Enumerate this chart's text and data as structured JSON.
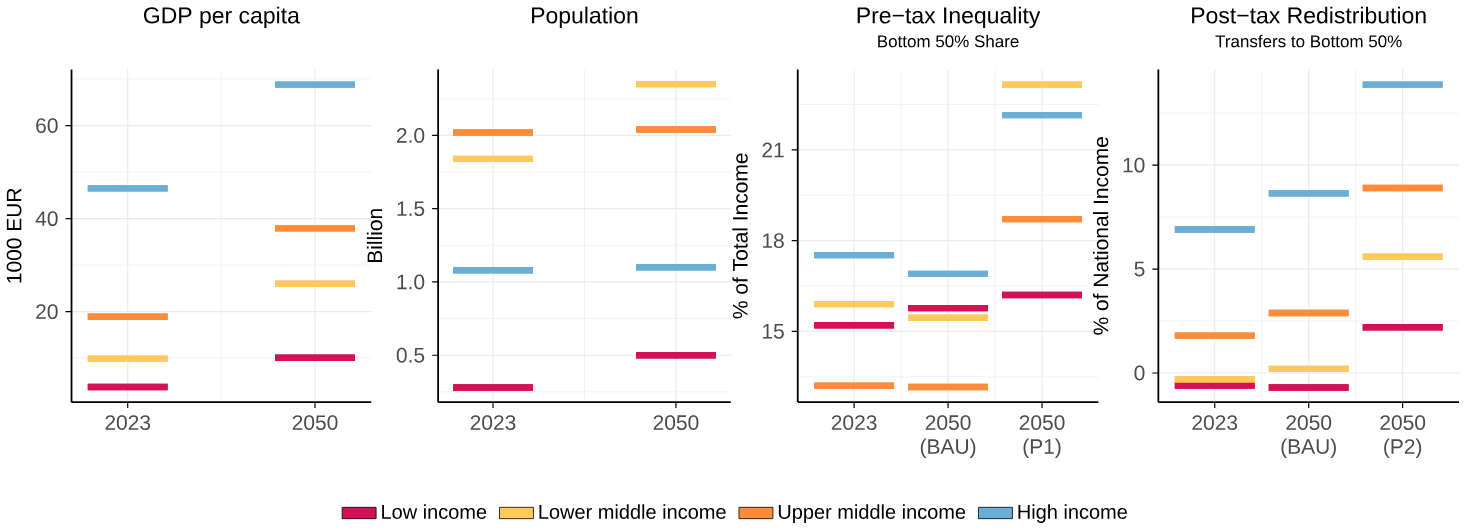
{
  "chart_data": [
    {
      "type": "box",
      "title": "GDP per capita",
      "ylabel": "1000 EUR",
      "categories": [
        "2023",
        "2050"
      ],
      "ylim": [
        0.55,
        72.05
      ],
      "yticks": [
        20,
        40,
        60
      ],
      "grid": true,
      "legend": "bottom",
      "series": [
        {
          "name": "Low income",
          "color": "#d31157",
          "boxes": [
            {
              "low": 3.8,
              "q1": 3.8,
              "median": 3.8,
              "q3": 3.8,
              "high": 3.8
            },
            {
              "low": 10.1,
              "q1": 10.1,
              "median": 10.1,
              "q3": 10.1,
              "high": 10.1
            }
          ]
        },
        {
          "name": "Lower middle income",
          "color": "#ffc95c",
          "boxes": [
            {
              "low": 9.9,
              "q1": 9.9,
              "median": 9.9,
              "q3": 9.9,
              "high": 9.9
            },
            {
              "low": 26.0,
              "q1": 26.0,
              "median": 26.0,
              "q3": 26.0,
              "high": 26.0
            }
          ]
        },
        {
          "name": "Upper middle income",
          "color": "#ff8c3b",
          "boxes": [
            {
              "low": 18.9,
              "q1": 18.9,
              "median": 18.9,
              "q3": 18.9,
              "high": 18.9
            },
            {
              "low": 37.9,
              "q1": 37.9,
              "median": 37.9,
              "q3": 37.9,
              "high": 37.9
            }
          ]
        },
        {
          "name": "High income",
          "color": "#6baed6",
          "boxes": [
            {
              "low": 46.5,
              "q1": 46.5,
              "median": 46.5,
              "q3": 46.5,
              "high": 46.5
            },
            {
              "low": 68.8,
              "q1": 68.8,
              "median": 68.8,
              "q3": 68.8,
              "high": 68.8
            }
          ]
        }
      ]
    },
    {
      "type": "box",
      "title": "Population",
      "ylabel": "Billion",
      "categories": [
        "2023",
        "2050"
      ],
      "ylim": [
        0.18,
        2.45
      ],
      "yticks": [
        0.5,
        {
          "value": 1,
          "label": "1.0"
        },
        1.5,
        {
          "value": 2,
          "label": "2.0"
        }
      ],
      "grid": true,
      "series": [
        {
          "color": "#d31157",
          "boxes": [
            {
              "low": 0.28,
              "q1": 0.28,
              "median": 0.28,
              "q3": 0.28,
              "high": 0.28
            },
            {
              "low": 0.5,
              "q1": 0.5,
              "median": 0.5,
              "q3": 0.5,
              "high": 0.5
            }
          ]
        },
        {
          "color": "#ffc95c",
          "boxes": [
            {
              "low": 1.84,
              "q1": 1.84,
              "median": 1.84,
              "q3": 1.84,
              "high": 1.84
            },
            {
              "low": 2.35,
              "q1": 2.35,
              "median": 2.35,
              "q3": 2.35,
              "high": 2.35
            }
          ]
        },
        {
          "color": "#ff8c3b",
          "boxes": [
            {
              "low": 2.02,
              "q1": 2.02,
              "median": 2.02,
              "q3": 2.02,
              "high": 2.02
            },
            {
              "low": 2.04,
              "q1": 2.04,
              "median": 2.04,
              "q3": 2.04,
              "high": 2.04
            }
          ]
        },
        {
          "color": "#6baed6",
          "boxes": [
            {
              "low": 1.08,
              "q1": 1.08,
              "median": 1.08,
              "q3": 1.08,
              "high": 1.08
            },
            {
              "low": 1.1,
              "q1": 1.1,
              "median": 1.1,
              "q3": 1.1,
              "high": 1.1
            }
          ]
        }
      ]
    },
    {
      "type": "box",
      "title": "Pre−tax Inequality",
      "subtitle": "Bottom 50% Share",
      "ylabel": "% of Total Income",
      "categories": [
        "2023",
        "2050 (BAU)",
        "2050 (P1)"
      ],
      "ylim": [
        12.66,
        23.66
      ],
      "yticks": [
        15,
        18,
        21
      ],
      "grid": true,
      "series": [
        {
          "color": "#d31157",
          "boxes": [
            {
              "low": 15.2,
              "q1": 15.2,
              "median": 15.2,
              "q3": 15.2,
              "high": 15.2
            },
            {
              "low": 15.77,
              "q1": 15.77,
              "median": 15.77,
              "q3": 15.77,
              "high": 15.77
            },
            {
              "low": 16.2,
              "q1": 16.2,
              "median": 16.2,
              "q3": 16.2,
              "high": 16.2
            }
          ]
        },
        {
          "color": "#ffc95c",
          "boxes": [
            {
              "low": 15.9,
              "q1": 15.9,
              "median": 15.9,
              "q3": 15.9,
              "high": 15.9
            },
            {
              "low": 15.45,
              "q1": 15.45,
              "median": 15.45,
              "q3": 15.45,
              "high": 15.45
            },
            {
              "low": 23.16,
              "q1": 23.16,
              "median": 23.16,
              "q3": 23.16,
              "high": 23.16
            }
          ]
        },
        {
          "color": "#ff8c3b",
          "boxes": [
            {
              "low": 13.2,
              "q1": 13.2,
              "median": 13.2,
              "q3": 13.2,
              "high": 13.2
            },
            {
              "low": 13.16,
              "q1": 13.16,
              "median": 13.16,
              "q3": 13.16,
              "high": 13.16
            },
            {
              "low": 18.71,
              "q1": 18.71,
              "median": 18.71,
              "q3": 18.71,
              "high": 18.71
            }
          ]
        },
        {
          "color": "#6baed6",
          "boxes": [
            {
              "low": 17.52,
              "q1": 17.52,
              "median": 17.52,
              "q3": 17.52,
              "high": 17.52
            },
            {
              "low": 16.9,
              "q1": 16.9,
              "median": 16.9,
              "q3": 16.9,
              "high": 16.9
            },
            {
              "low": 22.15,
              "q1": 22.15,
              "median": 22.15,
              "q3": 22.15,
              "high": 22.15
            }
          ]
        }
      ]
    },
    {
      "type": "box",
      "title": "Post−tax Redistribution",
      "subtitle": "Transfers to Bottom 50%",
      "ylabel": "% of National Income",
      "categories": [
        "2023",
        "2050 (BAU)",
        "2050 (P2)"
      ],
      "ylim": [
        -1.4,
        14.6
      ],
      "yticks": [
        0,
        5,
        10
      ],
      "grid": true,
      "series": [
        {
          "color": "#d31157",
          "boxes": [
            {
              "low": -0.6,
              "q1": -0.6,
              "median": -0.6,
              "q3": -0.6,
              "high": -0.6
            },
            {
              "low": -0.7,
              "q1": -0.7,
              "median": -0.7,
              "q3": -0.7,
              "high": -0.7
            },
            {
              "low": 2.2,
              "q1": 2.2,
              "median": 2.2,
              "q3": 2.2,
              "high": 2.2
            }
          ]
        },
        {
          "color": "#ffc95c",
          "boxes": [
            {
              "low": -0.3,
              "q1": -0.3,
              "median": -0.3,
              "q3": -0.3,
              "high": -0.3
            },
            {
              "low": 0.2,
              "q1": 0.2,
              "median": 0.2,
              "q3": 0.2,
              "high": 0.2
            },
            {
              "low": 5.6,
              "q1": 5.6,
              "median": 5.6,
              "q3": 5.6,
              "high": 5.6
            }
          ]
        },
        {
          "color": "#ff8c3b",
          "boxes": [
            {
              "low": 1.8,
              "q1": 1.8,
              "median": 1.8,
              "q3": 1.8,
              "high": 1.8
            },
            {
              "low": 2.89,
              "q1": 2.89,
              "median": 2.89,
              "q3": 2.89,
              "high": 2.89
            },
            {
              "low": 8.9,
              "q1": 8.9,
              "median": 8.9,
              "q3": 8.9,
              "high": 8.9
            }
          ]
        },
        {
          "color": "#6baed6",
          "boxes": [
            {
              "low": 6.9,
              "q1": 6.9,
              "median": 6.9,
              "q3": 6.9,
              "high": 6.9
            },
            {
              "low": 8.64,
              "q1": 8.64,
              "median": 8.64,
              "q3": 8.64,
              "high": 8.64
            },
            {
              "low": 13.87,
              "q1": 13.87,
              "median": 13.87,
              "q3": 13.87,
              "high": 13.87
            }
          ]
        }
      ]
    }
  ]
}
